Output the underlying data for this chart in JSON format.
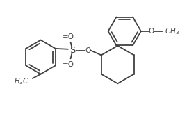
{
  "bg_color": "#ffffff",
  "line_color": "#404040",
  "line_width": 1.3,
  "font_size": 7.5,
  "figsize": [
    2.59,
    1.67
  ],
  "dpi": 100,
  "xlim": [
    0,
    259
  ],
  "ylim": [
    0,
    167
  ]
}
